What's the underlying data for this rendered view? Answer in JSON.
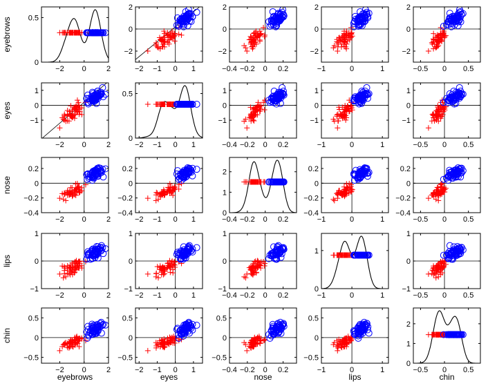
{
  "chart_data": {
    "type": "scatter",
    "layout": "scatter-matrix",
    "variables": [
      "eyebrows",
      "eyes",
      "nose",
      "lips",
      "chin"
    ],
    "ranges": {
      "eyebrows": [
        -3.5,
        2.0
      ],
      "eyes": [
        -2.2,
        1.5
      ],
      "nose": [
        -0.4,
        0.35
      ],
      "lips": [
        -1.0,
        1.2
      ],
      "chin": [
        -0.65,
        0.75
      ]
    },
    "ticks": {
      "eyebrows": [
        -2,
        0,
        2
      ],
      "eyes": [
        -2,
        -1,
        0,
        1
      ],
      "nose": [
        -0.4,
        -0.2,
        0,
        0.2
      ],
      "lips": [
        -1,
        0,
        1
      ],
      "chin": [
        -0.5,
        0,
        0.5
      ]
    },
    "tick_labels": {
      "eyebrows": [
        "−2",
        "0",
        "2"
      ],
      "eyes": [
        "−2",
        "−1",
        "0",
        "1"
      ],
      "nose": [
        "−0.4",
        "−0.2",
        "0",
        "0.2"
      ],
      "lips": [
        "−1",
        "0",
        "1"
      ],
      "chin": [
        "−0.5",
        "0",
        "0.5"
      ]
    },
    "y_ticks_offdiag": {
      "eyebrows": [
        -2,
        0,
        2
      ],
      "eyes": [
        -1,
        0,
        1
      ],
      "nose": [
        -0.4,
        -0.2,
        0,
        0.2
      ],
      "lips": [
        -1,
        0,
        1
      ],
      "chin": [
        -0.5,
        0,
        0.5
      ]
    },
    "y_tick_labels_offdiag": {
      "eyebrows": [
        "−2",
        "0",
        "2"
      ],
      "eyes": [
        "−1",
        "0",
        "1"
      ],
      "nose": [
        "−0.4",
        "−0.2",
        "0",
        "0.2"
      ],
      "lips": [
        "−1",
        "0",
        "1"
      ],
      "chin": [
        "−0.5",
        "0",
        "0.5"
      ]
    },
    "offdiag_yranges": {
      "eyebrows": [
        -3.0,
        2.0
      ],
      "eyes": [
        -2.2,
        1.5
      ],
      "nose": [
        -0.4,
        0.35
      ],
      "lips": [
        -1.0,
        1.0
      ],
      "chin": [
        -0.65,
        0.75
      ]
    },
    "diagonal": {
      "eyebrows": {
        "ylim": [
          0,
          0.62
        ],
        "ticks": [
          0,
          0.5
        ],
        "tick_labels": [
          "0",
          "0.5"
        ],
        "marker_level": 0.33
      },
      "eyes": {
        "ylim": [
          0,
          0.62
        ],
        "ticks": [
          0,
          0.5
        ],
        "tick_labels": [
          "0",
          "0.5"
        ],
        "marker_level": 0.38
      },
      "nose": {
        "ylim": [
          0,
          2.7
        ],
        "ticks": [
          0,
          1,
          2
        ],
        "tick_labels": [
          "0",
          "1",
          "2"
        ],
        "marker_level": 1.5
      },
      "lips": {
        "ylim": [
          0,
          1.45
        ],
        "ticks": [
          0,
          1
        ],
        "tick_labels": [
          "0",
          "1"
        ],
        "marker_level": 0.88
      },
      "chin": {
        "ylim": [
          0,
          2.8
        ],
        "ticks": [
          0,
          1,
          2
        ],
        "tick_labels": [
          "0",
          "1",
          "2"
        ],
        "marker_level": 1.45
      }
    },
    "groups": [
      {
        "marker": "plus",
        "color": "#ff0000"
      },
      {
        "marker": "circle",
        "color": "#0000ff"
      }
    ],
    "colors": {
      "kde": "#000000",
      "axes": "#000000",
      "reference_lines": "#000000"
    }
  }
}
